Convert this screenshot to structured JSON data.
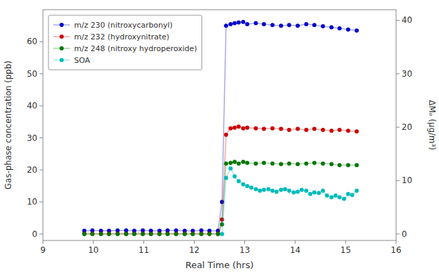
{
  "chart_data": {
    "type": "line",
    "x_label": "Real Time (hrs)",
    "y_label": "Gas-phase concentration (ppb)",
    "y2_label": "ΔMₒ (μg/m³)",
    "xlim": [
      9,
      16
    ],
    "ylim": [
      -2,
      70
    ],
    "y2lim": [
      -1.2,
      42
    ],
    "xticks": [
      9,
      10,
      11,
      12,
      13,
      14,
      15,
      16
    ],
    "yticks": [
      0,
      10,
      20,
      30,
      40,
      50,
      60
    ],
    "y2ticks": [
      0,
      10,
      20,
      30,
      40
    ],
    "grid": false,
    "legend": "upper left",
    "marker": "circle",
    "series": [
      {
        "name": "m/z 230 (nitroxycarbonyl)",
        "color": "#0000cc",
        "x": [
          9.82,
          9.98,
          10.15,
          10.31,
          10.48,
          10.65,
          10.81,
          10.98,
          11.14,
          11.31,
          11.47,
          11.64,
          11.81,
          11.97,
          12.14,
          12.3,
          12.47,
          12.55,
          12.63,
          12.72,
          12.8,
          12.88,
          12.97,
          13.05,
          13.22,
          13.38,
          13.55,
          13.72,
          13.88,
          14.05,
          14.22,
          14.38,
          14.55,
          14.72,
          14.88,
          15.05,
          15.22
        ],
        "values": [
          1.0,
          1.1,
          1.0,
          1.0,
          1.1,
          1.1,
          1.0,
          1.1,
          1.0,
          1.0,
          1.1,
          1.1,
          1.0,
          1.0,
          1.1,
          1.0,
          1.0,
          10.0,
          65.0,
          65.5,
          65.8,
          66.0,
          66.2,
          65.5,
          65.8,
          65.5,
          65.2,
          65.0,
          65.2,
          65.0,
          65.5,
          65.2,
          64.8,
          64.5,
          64.2,
          63.8,
          63.5
        ]
      },
      {
        "name": "m/z 232 (hydroxynitrate)",
        "color": "#cc0000",
        "x": [
          9.82,
          9.98,
          10.15,
          10.31,
          10.48,
          10.65,
          10.81,
          10.98,
          11.14,
          11.31,
          11.47,
          11.64,
          11.81,
          11.97,
          12.14,
          12.3,
          12.47,
          12.55,
          12.63,
          12.72,
          12.8,
          12.88,
          12.97,
          13.05,
          13.22,
          13.38,
          13.55,
          13.72,
          13.88,
          14.05,
          14.22,
          14.38,
          14.55,
          14.72,
          14.88,
          15.05,
          15.22
        ],
        "values": [
          0.1,
          0.1,
          0.1,
          0.1,
          0.1,
          0.1,
          0.1,
          0.1,
          0.1,
          0.1,
          0.1,
          0.1,
          0.1,
          0.1,
          0.1,
          0.1,
          0.1,
          4.5,
          31.0,
          33.0,
          33.2,
          33.5,
          33.0,
          33.2,
          33.0,
          32.8,
          33.0,
          32.8,
          32.5,
          32.8,
          32.5,
          32.8,
          32.5,
          32.2,
          32.5,
          32.2,
          32.0
        ]
      },
      {
        "name": "m/z 248 (nitroxy hydroperoxide)",
        "color": "#007700",
        "x": [
          9.82,
          9.98,
          10.15,
          10.31,
          10.48,
          10.65,
          10.81,
          10.98,
          11.14,
          11.31,
          11.47,
          11.64,
          11.81,
          11.97,
          12.14,
          12.3,
          12.47,
          12.55,
          12.63,
          12.72,
          12.8,
          12.88,
          12.97,
          13.05,
          13.22,
          13.38,
          13.55,
          13.72,
          13.88,
          14.05,
          14.22,
          14.38,
          14.55,
          14.72,
          14.88,
          15.05,
          15.22
        ],
        "values": [
          0.0,
          0.0,
          0.0,
          0.0,
          0.0,
          0.0,
          0.0,
          0.0,
          0.0,
          0.0,
          0.0,
          0.0,
          0.0,
          0.0,
          0.0,
          0.0,
          0.0,
          3.0,
          22.0,
          22.2,
          22.5,
          22.0,
          22.5,
          22.2,
          22.0,
          22.2,
          22.0,
          21.8,
          22.0,
          21.8,
          22.0,
          22.2,
          22.0,
          21.8,
          21.5,
          21.5,
          21.5
        ]
      },
      {
        "name": "SOA",
        "color": "#00bbbb",
        "x": [
          12.55,
          12.63,
          12.72,
          12.8,
          12.88,
          12.97,
          13.05,
          13.13,
          13.22,
          13.3,
          13.38,
          13.47,
          13.55,
          13.63,
          13.72,
          13.8,
          13.88,
          13.97,
          14.05,
          14.13,
          14.22,
          14.3,
          14.38,
          14.47,
          14.55,
          14.63,
          14.72,
          14.8,
          14.88,
          14.97,
          15.05,
          15.13,
          15.22
        ],
        "values": [
          0.0,
          17.5,
          20.5,
          18.0,
          16.5,
          15.5,
          15.0,
          14.5,
          14.0,
          13.5,
          13.8,
          14.0,
          13.5,
          13.2,
          13.8,
          14.0,
          13.5,
          13.0,
          13.2,
          13.8,
          13.5,
          12.5,
          13.0,
          12.8,
          13.5,
          12.0,
          11.5,
          12.0,
          11.5,
          11.0,
          12.5,
          12.2,
          13.5
        ]
      }
    ]
  }
}
